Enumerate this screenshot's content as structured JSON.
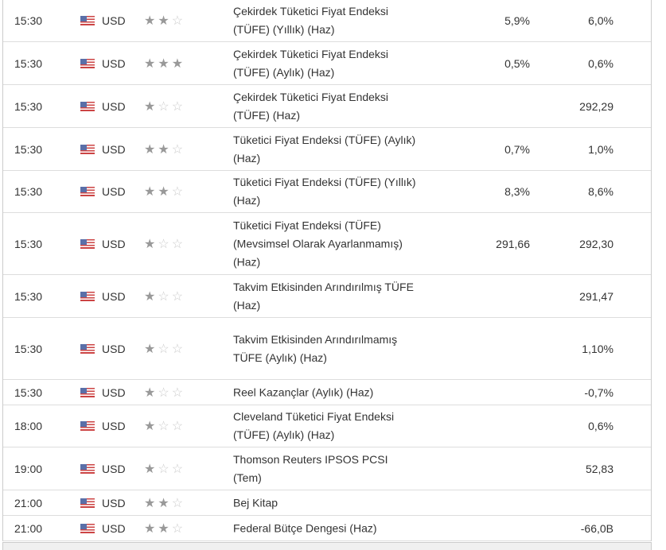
{
  "rows": [
    {
      "time": "15:30",
      "currency": "USD",
      "importance": 2,
      "event": "Çekirdek Tüketici Fiyat Endeksi (TÜFE) (Yıllık) (Haz)",
      "actual": "5,9%",
      "forecast": "6,0%"
    },
    {
      "time": "15:30",
      "currency": "USD",
      "importance": 3,
      "event": "Çekirdek Tüketici Fiyat Endeksi (TÜFE) (Aylık) (Haz)",
      "actual": "0,5%",
      "forecast": "0,6%"
    },
    {
      "time": "15:30",
      "currency": "USD",
      "importance": 1,
      "event": "Çekirdek Tüketici Fiyat Endeksi (TÜFE) (Haz)",
      "actual": "",
      "forecast": "292,29"
    },
    {
      "time": "15:30",
      "currency": "USD",
      "importance": 2,
      "event": "Tüketici Fiyat Endeksi (TÜFE) (Aylık) (Haz)",
      "actual": "0,7%",
      "forecast": "1,0%"
    },
    {
      "time": "15:30",
      "currency": "USD",
      "importance": 2,
      "event": "Tüketici Fiyat Endeksi (TÜFE) (Yıllık) (Haz)",
      "actual": "8,3%",
      "forecast": "8,6%"
    },
    {
      "time": "15:30",
      "currency": "USD",
      "importance": 1,
      "event": "Tüketici Fiyat Endeksi (TÜFE) (Mevsimsel Olarak Ayarlanmamış) (Haz)",
      "actual": "291,66",
      "forecast": "292,30"
    },
    {
      "time": "15:30",
      "currency": "USD",
      "importance": 1,
      "event": "Takvim Etkisinden Arındırılmış TÜFE (Haz)",
      "actual": "",
      "forecast": "291,47"
    },
    {
      "time": "15:30",
      "currency": "USD",
      "importance": 1,
      "event": "Takvim Etkisinden Arındırılmamış TÜFE (Aylık) (Haz)",
      "actual": "",
      "forecast": "1,10%"
    },
    {
      "time": "15:30",
      "currency": "USD",
      "importance": 1,
      "event": "Reel Kazançlar (Aylık) (Haz)",
      "actual": "",
      "forecast": "-0,7%"
    },
    {
      "time": "18:00",
      "currency": "USD",
      "importance": 1,
      "event": "Cleveland Tüketici Fiyat Endeksi (TÜFE) (Aylık) (Haz)",
      "actual": "",
      "forecast": "0,6%"
    },
    {
      "time": "19:00",
      "currency": "USD",
      "importance": 1,
      "event": "Thomson Reuters IPSOS PCSI (Tem)",
      "actual": "",
      "forecast": "52,83"
    },
    {
      "time": "21:00",
      "currency": "USD",
      "importance": 2,
      "event": "Bej Kitap",
      "actual": "",
      "forecast": ""
    },
    {
      "time": "21:00",
      "currency": "USD",
      "importance": 2,
      "event": "Federal Bütçe Dengesi (Haz)",
      "actual": "",
      "forecast": "-66,0B"
    }
  ]
}
